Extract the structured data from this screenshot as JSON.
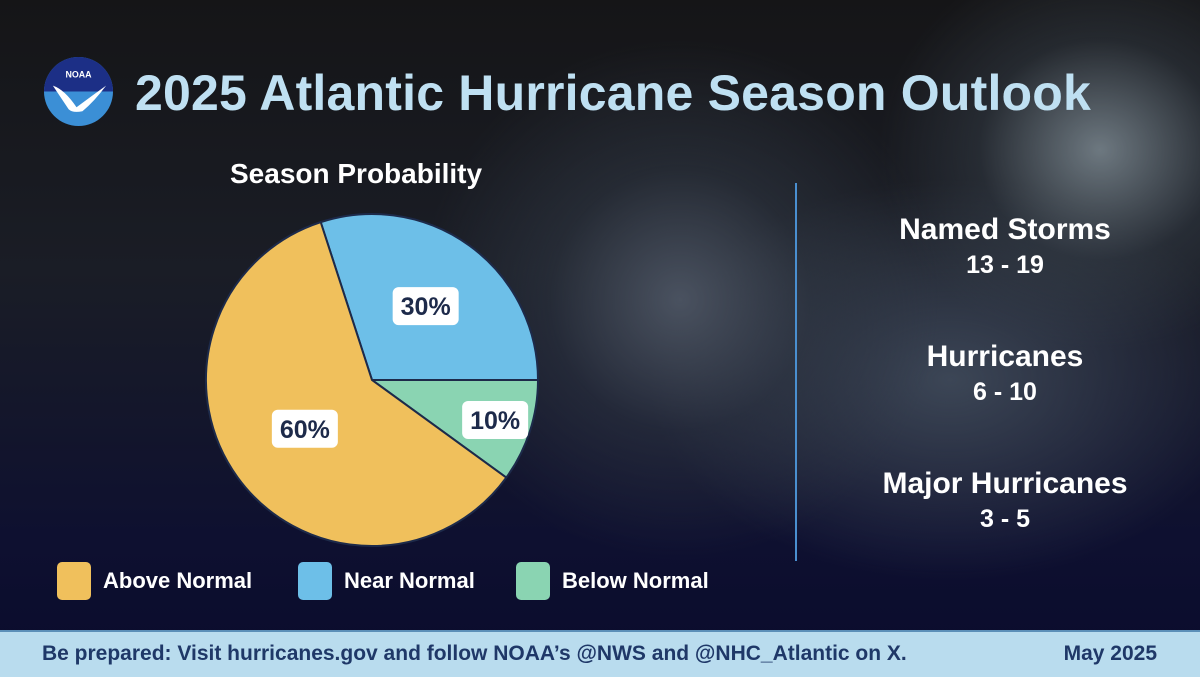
{
  "header": {
    "title": "2025 Atlantic Hurricane Season Outlook",
    "logo_text": "NOAA"
  },
  "chart_data": {
    "type": "pie",
    "title": "Season Probability",
    "categories": [
      "Near Normal",
      "Below Normal",
      "Above Normal"
    ],
    "values": [
      30,
      10,
      60
    ],
    "labels": [
      "30%",
      "10%",
      "60%"
    ],
    "colors": [
      "#6dbfe8",
      "#8ad4b2",
      "#f0c05c"
    ],
    "legend": [
      {
        "label": "Above Normal",
        "color": "#f0c05c"
      },
      {
        "label": "Near Normal",
        "color": "#6dbfe8"
      },
      {
        "label": "Below Normal",
        "color": "#8ad4b2"
      }
    ],
    "legend_position": "bottom"
  },
  "stats": [
    {
      "heading": "Named Storms",
      "range": "13 - 19"
    },
    {
      "heading": "Hurricanes",
      "range": "6 - 10"
    },
    {
      "heading": "Major Hurricanes",
      "range": "3 - 5"
    }
  ],
  "footer": {
    "message": "Be prepared: Visit hurricanes.gov and follow NOAA’s @NWS and @NHC_Atlantic on X.",
    "date": "May 2025"
  }
}
